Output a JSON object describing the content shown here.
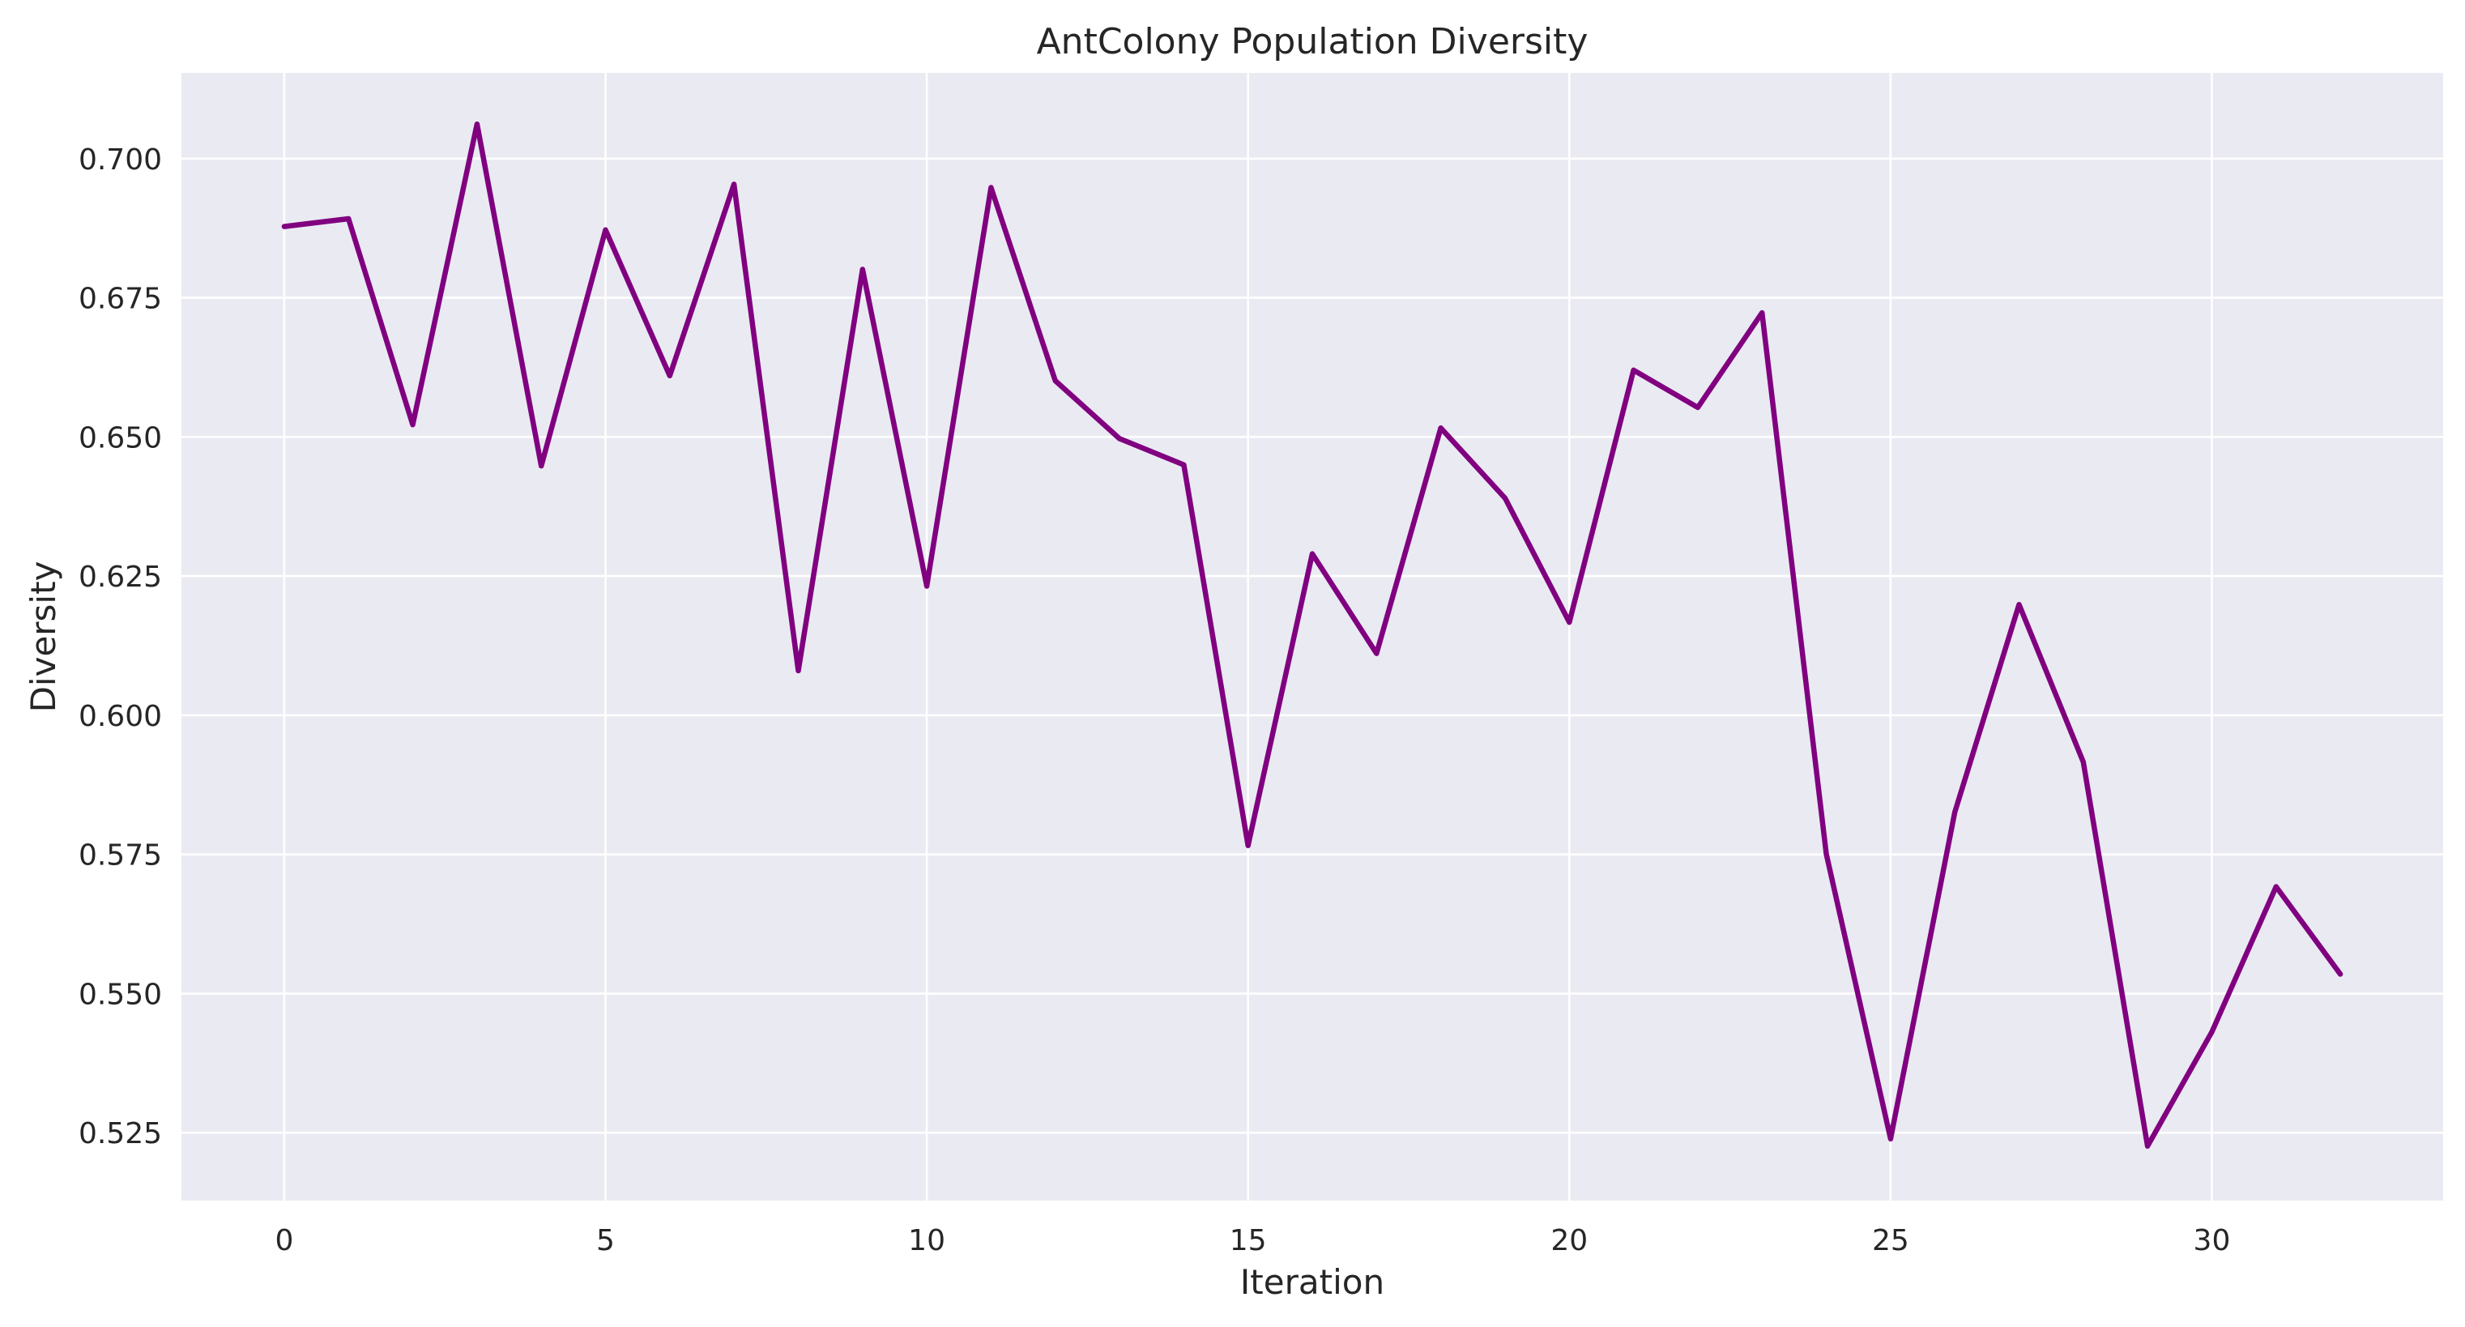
{
  "chart_data": {
    "type": "line",
    "title": "AntColony Population Diversity",
    "xlabel": "Iteration",
    "ylabel": "Diversity",
    "x": [
      0,
      1,
      2,
      3,
      4,
      5,
      6,
      7,
      8,
      9,
      10,
      11,
      12,
      13,
      14,
      15,
      16,
      17,
      18,
      19,
      20,
      21,
      22,
      23,
      24,
      25,
      26,
      27,
      28,
      29,
      30,
      31,
      32
    ],
    "series": [
      {
        "values": [
          0.6878,
          0.6892,
          0.6522,
          0.7062,
          0.6448,
          0.6872,
          0.661,
          0.6954,
          0.608,
          0.6801,
          0.6232,
          0.6948,
          0.6601,
          0.6497,
          0.645,
          0.5766,
          0.629,
          0.6111,
          0.6516,
          0.639,
          0.6167,
          0.662,
          0.6553,
          0.6723,
          0.5751,
          0.5239,
          0.5826,
          0.6199,
          0.5916,
          0.5226,
          0.5431,
          0.5692,
          0.5535
        ]
      }
    ],
    "xlim": [
      -1.6,
      33.6
    ],
    "ylim": [
      0.5128,
      0.7154
    ],
    "xticks": [
      0,
      5,
      10,
      15,
      20,
      25,
      30
    ],
    "xtick_labels": [
      "0",
      "5",
      "10",
      "15",
      "20",
      "25",
      "30"
    ],
    "yticks": [
      0.525,
      0.55,
      0.575,
      0.6,
      0.625,
      0.65,
      0.675,
      0.7
    ],
    "ytick_labels": [
      "0.525",
      "0.550",
      "0.575",
      "0.600",
      "0.625",
      "0.650",
      "0.675",
      "0.700"
    ],
    "grid": true,
    "legend": "none",
    "colors": {
      "line": "#800080",
      "plot_background": "#eaeaf2",
      "grid": "#ffffff",
      "text": "#262626"
    }
  }
}
